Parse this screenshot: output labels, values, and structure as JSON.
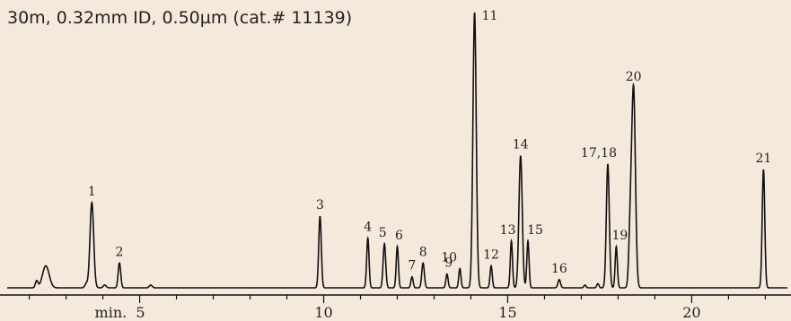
{
  "column_text": "30m, 0.32mm ID, 0.50µm (cat.# 11139)",
  "colors": {
    "background": "#f5e9dc",
    "trace": "#111111"
  },
  "chart_data": {
    "type": "line",
    "title": "",
    "xlabel": "",
    "ylabel": "",
    "x_unit_label": "min.",
    "xlim": [
      1.4,
      22.6
    ],
    "ylim": [
      0,
      100
    ],
    "xticks": [
      5,
      10,
      15,
      20
    ],
    "baseline": 0,
    "peaks": [
      {
        "label": "",
        "x": 2.2,
        "height": 2.5,
        "width": 0.035
      },
      {
        "label": "",
        "x": 2.45,
        "height": 8.0,
        "width": 0.09
      },
      {
        "label": "1",
        "x": 3.7,
        "height": 31.0,
        "width": 0.05
      },
      {
        "label": "",
        "x": 3.55,
        "height": 1.5,
        "width": 0.04
      },
      {
        "label": "",
        "x": 4.05,
        "height": 1.0,
        "width": 0.04
      },
      {
        "label": "2",
        "x": 4.45,
        "height": 9.0,
        "width": 0.035
      },
      {
        "label": "",
        "x": 5.3,
        "height": 1.0,
        "width": 0.04
      },
      {
        "label": "3",
        "x": 9.9,
        "height": 26.0,
        "width": 0.035
      },
      {
        "label": "4",
        "x": 11.2,
        "height": 18.0,
        "width": 0.032
      },
      {
        "label": "5",
        "x": 11.65,
        "height": 16.0,
        "width": 0.035
      },
      {
        "label": "6",
        "x": 12.0,
        "height": 15.0,
        "width": 0.03
      },
      {
        "label": "7",
        "x": 12.4,
        "height": 4.0,
        "width": 0.03
      },
      {
        "label": "8",
        "x": 12.7,
        "height": 9.0,
        "width": 0.035
      },
      {
        "label": "9",
        "x": 13.35,
        "height": 5.0,
        "width": 0.03
      },
      {
        "label": "10",
        "x": 13.7,
        "height": 7.0,
        "width": 0.03
      },
      {
        "label": "11",
        "x": 14.1,
        "height": 100.0,
        "width": 0.045
      },
      {
        "label": "12",
        "x": 14.55,
        "height": 8.0,
        "width": 0.03
      },
      {
        "label": "13",
        "x": 15.1,
        "height": 17.0,
        "width": 0.03
      },
      {
        "label": "14",
        "x": 15.35,
        "height": 48.0,
        "width": 0.045
      },
      {
        "label": "15",
        "x": 15.55,
        "height": 17.0,
        "width": 0.03
      },
      {
        "label": "16",
        "x": 16.4,
        "height": 3.0,
        "width": 0.035
      },
      {
        "label": "",
        "x": 17.1,
        "height": 1.0,
        "width": 0.03
      },
      {
        "label": "",
        "x": 17.45,
        "height": 1.5,
        "width": 0.03
      },
      {
        "label": "17,18",
        "x": 17.72,
        "height": 45.0,
        "width": 0.04
      },
      {
        "label": "19",
        "x": 17.95,
        "height": 15.0,
        "width": 0.03
      },
      {
        "label": "20",
        "x": 18.42,
        "height": 72.0,
        "width": 0.05
      },
      {
        "label": "",
        "x": 18.33,
        "height": 20.0,
        "width": 0.04
      },
      {
        "label": "21",
        "x": 21.95,
        "height": 43.0,
        "width": 0.035
      }
    ],
    "tick_labels": [
      "min.  5",
      "10",
      "15",
      "20"
    ]
  }
}
